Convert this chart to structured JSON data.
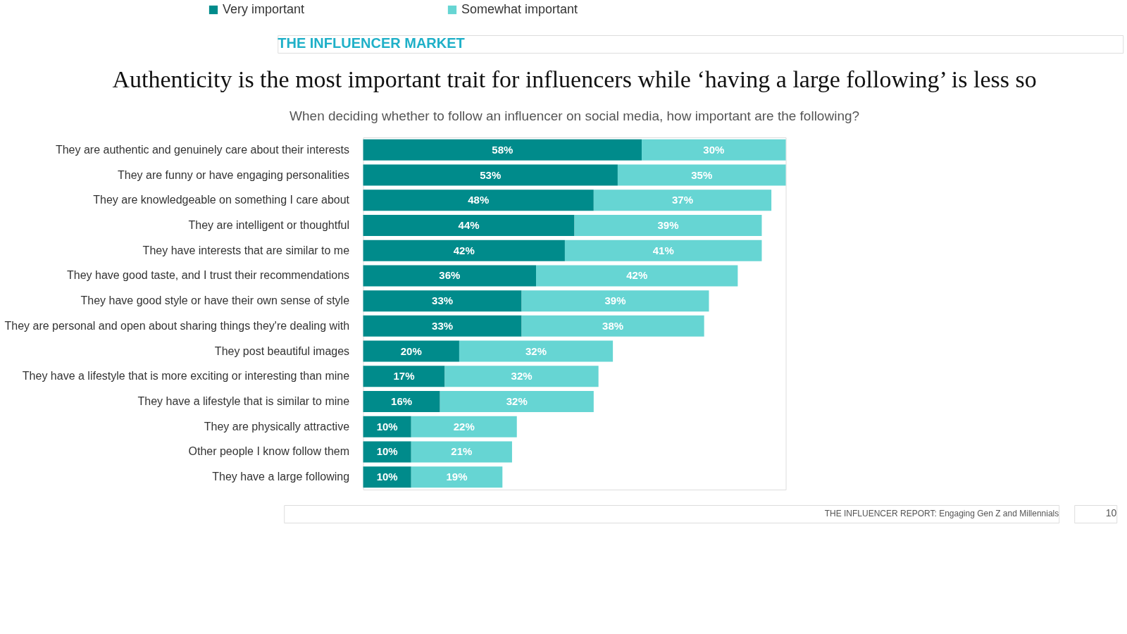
{
  "chart_data": {
    "type": "bar",
    "orientation": "horizontal",
    "stacked": true,
    "tick_labels": "y",
    "grid": false,
    "legend": "top",
    "title": "Authenticity is the most important trait for influencers while ‘having a large following’ is less so",
    "subtitle": "When deciding whether to follow an influencer on social media, how important are the following?",
    "categories": [
      "They are authentic and genuinely care about their interests",
      "They are funny or have engaging personalities",
      "They are knowledgeable on something I care about",
      "They are intelligent or thoughtful",
      "They have interests that are similar to me",
      "They have good taste, and I trust their recommendations",
      "They have good style or have their own sense of style",
      "They are personal and open about sharing things they're dealing with",
      "They post beautiful images",
      "They have a lifestyle that is more exciting or interesting than mine",
      "They have a lifestyle that is similar to mine",
      "They are physically attractive",
      "Other people I know follow them",
      "They have a large following"
    ],
    "series": [
      {
        "name": "Very important",
        "color": "#008b8b",
        "values": [
          58,
          53,
          48,
          44,
          42,
          36,
          33,
          33,
          20,
          17,
          16,
          10,
          10,
          10
        ],
        "value_labels": [
          "58%",
          "53%",
          "48%",
          "44%",
          "42%",
          "36%",
          "33%",
          "33%",
          "20%",
          "17%",
          "16%",
          "10%",
          "10%",
          "10%"
        ]
      },
      {
        "name": "Somewhat important",
        "color": "#66d5d3",
        "values": [
          30,
          35,
          37,
          39,
          41,
          42,
          39,
          38,
          32,
          32,
          32,
          22,
          21,
          19
        ],
        "value_labels": [
          "30%",
          "35%",
          "37%",
          "39%",
          "41%",
          "42%",
          "39%",
          "38%",
          "32%",
          "32%",
          "32%",
          "22%",
          "21%",
          "19%"
        ]
      }
    ],
    "annotations": [
      "THE INFLUENCER MARKET",
      "THE INFLUENCER REPORT: Engaging Gen Z and Millennials",
      "10"
    ]
  }
}
